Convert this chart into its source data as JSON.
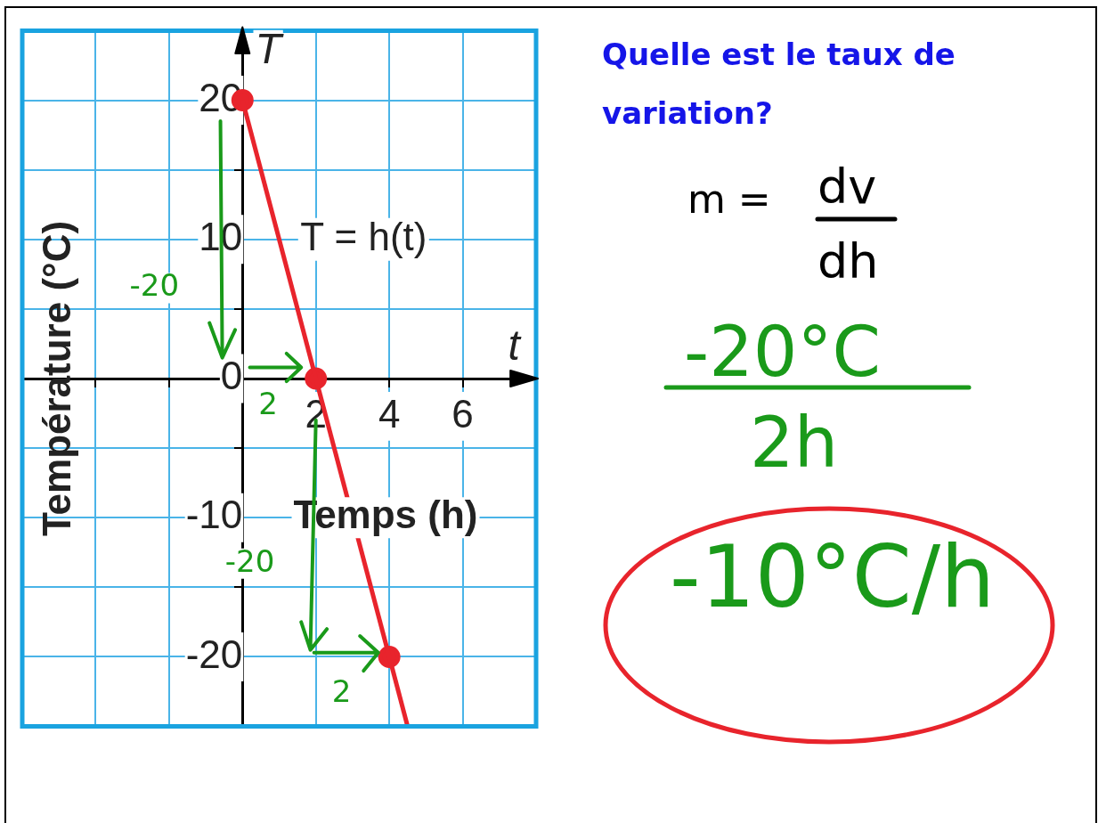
{
  "chart_data": {
    "type": "line",
    "title": "Quelle est le taux de variation?",
    "xlabel": "Temps (h)",
    "ylabel": "Température (°C)",
    "xlim": [
      -6,
      8
    ],
    "ylim": [
      -25,
      25
    ],
    "xticks": [
      {
        "value": -6,
        "label": null
      },
      {
        "value": -4,
        "label": null
      },
      {
        "value": -2,
        "label": null
      },
      {
        "value": 0,
        "label": null
      },
      2,
      4,
      6,
      {
        "value": 8,
        "label": null
      }
    ],
    "yticks": [
      {
        "value": -25,
        "label": null
      },
      -20,
      {
        "value": -15,
        "label": null
      },
      -10,
      {
        "value": -5,
        "label": null
      },
      0,
      {
        "value": 5,
        "label": null
      },
      10,
      {
        "value": 15,
        "label": null
      },
      20,
      {
        "value": 25,
        "label": null
      }
    ],
    "grid": true,
    "series": [
      {
        "color": "#e8242c",
        "marker": "none",
        "x": [
          0,
          4.5
        ],
        "values": [
          20,
          -25
        ]
      },
      {
        "type": "scatter",
        "color": "#e8242c",
        "marker": "circle",
        "x": [
          0,
          2,
          4
        ],
        "values": [
          20,
          0,
          -20
        ]
      }
    ],
    "annotations": [
      "T",
      "t",
      "T = h(t)",
      "-20",
      "2",
      "-20",
      "2",
      "m =",
      "dv",
      "dh",
      "-20°C",
      "2h",
      "-10°C/h"
    ]
  }
}
